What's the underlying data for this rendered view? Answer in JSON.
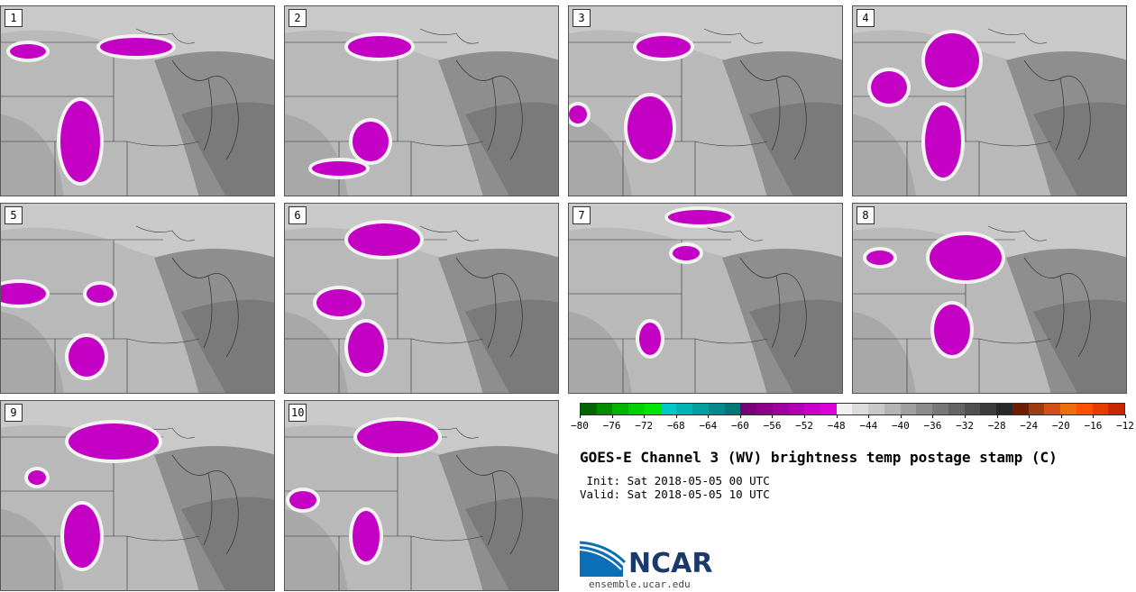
{
  "panels": [
    {
      "label": "1"
    },
    {
      "label": "2"
    },
    {
      "label": "3"
    },
    {
      "label": "4"
    },
    {
      "label": "5"
    },
    {
      "label": "6"
    },
    {
      "label": "7"
    },
    {
      "label": "8"
    },
    {
      "label": "9"
    },
    {
      "label": "10"
    }
  ],
  "colorbar": {
    "ticks": [
      "−80",
      "−76",
      "−72",
      "−68",
      "−64",
      "−60",
      "−56",
      "−52",
      "−48",
      "−44",
      "−40",
      "−36",
      "−32",
      "−28",
      "−24",
      "−20",
      "−16",
      "−12"
    ],
    "colors": [
      "#006400",
      "#008c00",
      "#00b400",
      "#00d200",
      "#00e600",
      "#00c8c8",
      "#00b4b4",
      "#00a0a0",
      "#008c8c",
      "#007878",
      "#780078",
      "#8c008c",
      "#a000a0",
      "#b400b4",
      "#c800c8",
      "#dc00dc",
      "#f0f0f0",
      "#dcdcdc",
      "#c8c8c8",
      "#b4b4b4",
      "#a0a0a0",
      "#8c8c8c",
      "#787878",
      "#646464",
      "#505050",
      "#3c3c3c",
      "#282828",
      "#6e1e00",
      "#a03c14",
      "#d25014",
      "#f06e0a",
      "#ff5000",
      "#e63c00",
      "#c82800"
    ]
  },
  "title": "GOES-E Channel 3 (WV) brightness temp postage stamp (C)",
  "init": " Init: Sat 2018-05-05 00 UTC",
  "valid": "Valid: Sat 2018-05-05 10 UTC",
  "logo": {
    "text": "NCAR",
    "url": "ensemble.ucar.edu"
  }
}
